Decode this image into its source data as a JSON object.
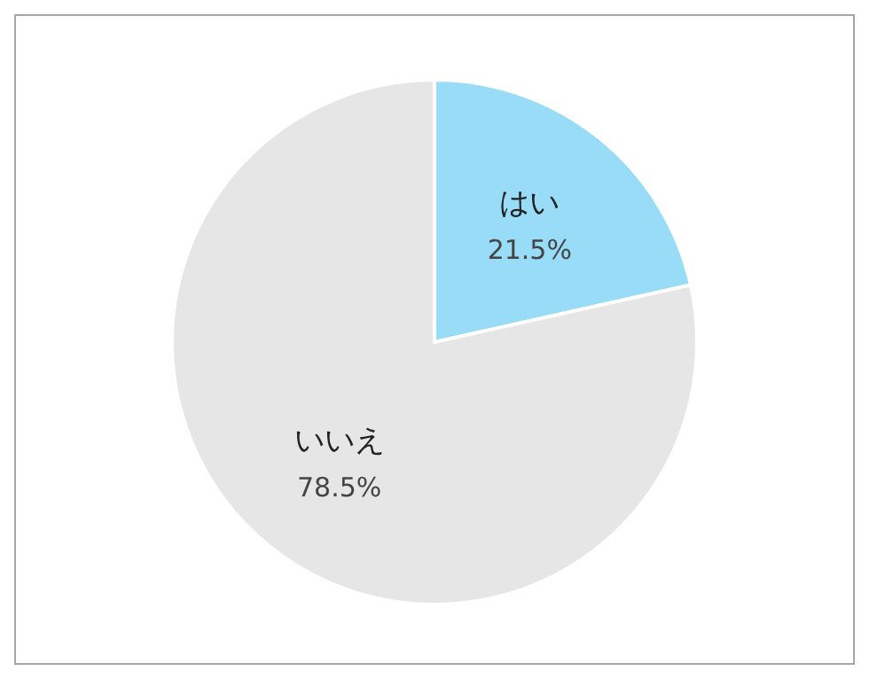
{
  "chart_data": {
    "type": "pie",
    "categories": [
      "はい",
      "いいえ"
    ],
    "values": [
      21.5,
      78.5
    ],
    "value_labels": [
      "21.5%",
      "78.5%"
    ],
    "colors": [
      "#99dcf8",
      "#e6e6e6"
    ]
  }
}
